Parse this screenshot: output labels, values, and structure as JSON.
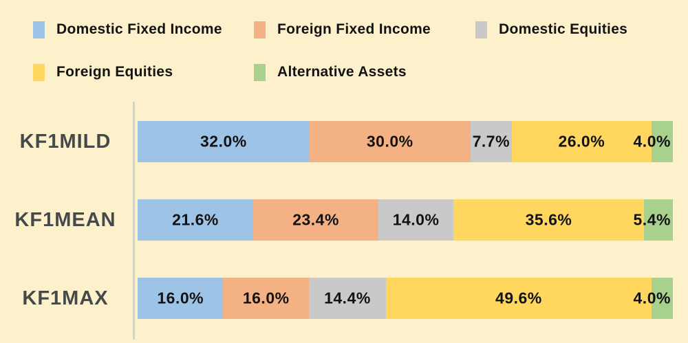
{
  "chart_data": {
    "type": "bar",
    "orientation": "horizontal",
    "stacked": true,
    "unit": "%",
    "title": "",
    "xlabel": "",
    "ylabel": "",
    "xlim": [
      0,
      100
    ],
    "grid": false,
    "legend_position": "top",
    "background_color": "#FDF1CC",
    "axis_line_color": "#CDD2D6",
    "row_label_color": "#46494C",
    "value_label_color": "#121212",
    "series": [
      {
        "name": "Domestic Fixed Income",
        "color": "#9DC3E6"
      },
      {
        "name": "Foreign Fixed Income",
        "color": "#F4B183"
      },
      {
        "name": "Domestic Equities",
        "color": "#C9C9C9"
      },
      {
        "name": "Foreign Equities",
        "color": "#FFD75E"
      },
      {
        "name": "Alternative Assets",
        "color": "#A9D18E"
      }
    ],
    "rows": [
      {
        "name": "KF1MILD",
        "values": [
          32.0,
          30.0,
          7.7,
          26.0,
          4.0
        ],
        "labels": [
          "32.0%",
          "30.0%",
          "7.7%",
          "26.0%",
          "4.0%"
        ]
      },
      {
        "name": "KF1MEAN",
        "values": [
          21.6,
          23.4,
          14.0,
          35.6,
          5.4
        ],
        "labels": [
          "21.6%",
          "23.4%",
          "14.0%",
          "35.6%",
          "5.4%"
        ]
      },
      {
        "name": "KF1MAX",
        "values": [
          16.0,
          16.0,
          14.4,
          49.6,
          4.0
        ],
        "labels": [
          "16.0%",
          "16.0%",
          "14.4%",
          "49.6%",
          "4.0%"
        ]
      }
    ]
  }
}
